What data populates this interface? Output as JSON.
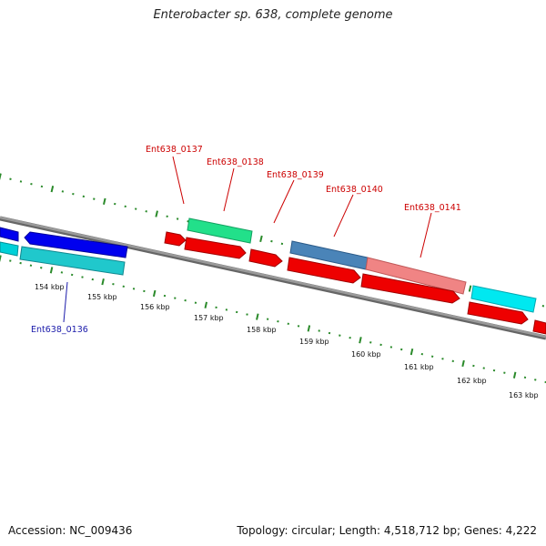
{
  "title": "Enterobacter sp. 638, complete genome",
  "footer": {
    "accession": "Accession: NC_009436",
    "summary": "Topology: circular; Length: 4,518,712 bp; Genes: 4,222"
  },
  "colors": {
    "background": "#ffffff",
    "backbone": "#888888",
    "tick": "#2a8a2a",
    "label_forward": "#cc0000",
    "label_reverse": "#1a1aaa"
  },
  "kbp_labels": [
    "154 kbp",
    "155 kbp",
    "156 kbp",
    "157 kbp",
    "158 kbp",
    "159 kbp",
    "160 kbp",
    "161 kbp",
    "162 kbp",
    "163 kbp"
  ],
  "gene_labels": [
    {
      "text": "Ent638_0136",
      "strand": "reverse"
    },
    {
      "text": "Ent638_0137",
      "strand": "forward"
    },
    {
      "text": "Ent638_0138",
      "strand": "forward"
    },
    {
      "text": "Ent638_0139",
      "strand": "forward"
    },
    {
      "text": "Ent638_0140",
      "strand": "forward"
    },
    {
      "text": "Ent638_0141",
      "strand": "forward"
    }
  ]
}
